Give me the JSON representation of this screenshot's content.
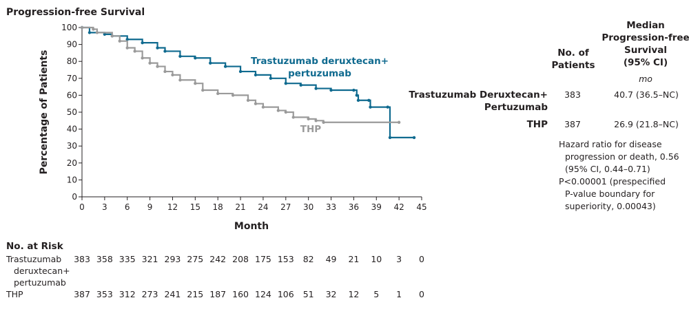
{
  "chart_data": {
    "type": "line",
    "title": "Progression-free Survival",
    "xlabel": "Month",
    "ylabel": "Percentage of Patients",
    "xlim": [
      0,
      45
    ],
    "ylim": [
      0,
      100
    ],
    "x_ticks": [
      0,
      3,
      6,
      9,
      12,
      15,
      18,
      21,
      24,
      27,
      30,
      33,
      36,
      39,
      42,
      45
    ],
    "y_ticks": [
      0,
      10,
      20,
      30,
      40,
      50,
      60,
      70,
      80,
      90,
      100
    ],
    "grid": false,
    "step": true,
    "series": [
      {
        "name": "Trastuzumab deruxtecan+ pertuzumab",
        "name_lines": [
          "Trastuzumab deruxtecan+",
          "pertuzumab"
        ],
        "color": "#0f6a8f",
        "points": [
          [
            0,
            100
          ],
          [
            1,
            97
          ],
          [
            3,
            96
          ],
          [
            4,
            95
          ],
          [
            6,
            93
          ],
          [
            8,
            91
          ],
          [
            10,
            88
          ],
          [
            11,
            86
          ],
          [
            13,
            83
          ],
          [
            15,
            82
          ],
          [
            17,
            79
          ],
          [
            19,
            77
          ],
          [
            21,
            74
          ],
          [
            23,
            72
          ],
          [
            25,
            70
          ],
          [
            27,
            67
          ],
          [
            29,
            66
          ],
          [
            31,
            64
          ],
          [
            33,
            63
          ],
          [
            36,
            63
          ],
          [
            36.4,
            60
          ],
          [
            36.6,
            57
          ],
          [
            38,
            57
          ],
          [
            38.2,
            53
          ],
          [
            40.5,
            53
          ],
          [
            40.8,
            35
          ],
          [
            44,
            35
          ]
        ]
      },
      {
        "name": "THP",
        "name_lines": [
          "THP"
        ],
        "color": "#9a9a9a",
        "points": [
          [
            0,
            100
          ],
          [
            1.5,
            99
          ],
          [
            2,
            97
          ],
          [
            4,
            95
          ],
          [
            5,
            92
          ],
          [
            6,
            88
          ],
          [
            7,
            86
          ],
          [
            8,
            82
          ],
          [
            9,
            79
          ],
          [
            10,
            77
          ],
          [
            11,
            74
          ],
          [
            12,
            72
          ],
          [
            13,
            69
          ],
          [
            15,
            67
          ],
          [
            16,
            63
          ],
          [
            18,
            61
          ],
          [
            20,
            60
          ],
          [
            22,
            57
          ],
          [
            23,
            55
          ],
          [
            24,
            53
          ],
          [
            26,
            51
          ],
          [
            27,
            50
          ],
          [
            28,
            47
          ],
          [
            30,
            46
          ],
          [
            31,
            45
          ],
          [
            32,
            44
          ],
          [
            42,
            44
          ]
        ]
      }
    ],
    "risk_table": {
      "title": "No. at Risk",
      "rows": [
        {
          "label_lines": [
            "Trastuzumab",
            "deruxtecan+",
            "pertuzumab"
          ],
          "values": [
            383,
            358,
            335,
            321,
            293,
            275,
            242,
            208,
            175,
            153,
            82,
            49,
            21,
            10,
            3,
            0
          ]
        },
        {
          "label_lines": [
            "THP"
          ],
          "values": [
            387,
            353,
            312,
            273,
            241,
            215,
            187,
            160,
            124,
            106,
            51,
            32,
            12,
            5,
            1,
            0
          ]
        }
      ]
    },
    "summary_table": {
      "col_patients_lines": [
        "No. of",
        "Patients"
      ],
      "col_median_lines": [
        "Median",
        "Progression-free",
        "Survival",
        "(95% CI)"
      ],
      "unit": "mo",
      "rows": [
        {
          "label_lines": [
            "Trastuzumab Deruxtecan+",
            "Pertuzumab"
          ],
          "patients": "383",
          "median": "40.7 (36.5–NC)"
        },
        {
          "label_lines": [
            "THP"
          ],
          "patients": "387",
          "median": "26.9 (21.8–NC)"
        }
      ],
      "notes_lines": [
        "Hazard ratio for disease",
        "progression or death, 0.56",
        "(95% CI, 0.44–0.71)",
        "P<0.00001 (prespecified",
        "P-value boundary for",
        "superiority, 0.00043)"
      ]
    }
  }
}
